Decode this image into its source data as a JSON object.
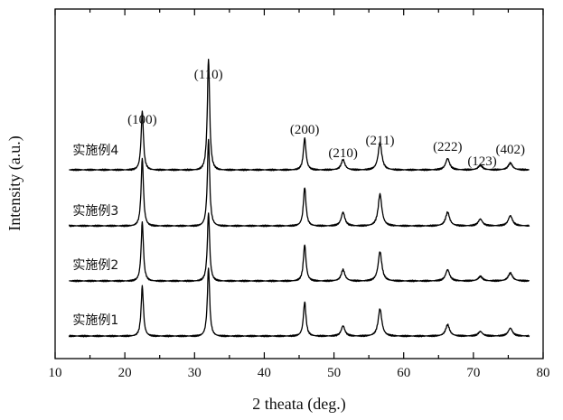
{
  "chart_data": {
    "type": "line",
    "xlabel": "2 theata (deg.)",
    "ylabel": "Intensity (a.u.)",
    "xlim": [
      10,
      80
    ],
    "x_ticks": [
      10,
      20,
      30,
      40,
      50,
      60,
      70,
      80
    ],
    "y_ticks_shown": false,
    "grid": false,
    "peak_labels": [
      {
        "label": "(100)",
        "x": 22.5
      },
      {
        "label": "(110)",
        "x": 32.0
      },
      {
        "label": "(200)",
        "x": 45.8
      },
      {
        "label": "(210)",
        "x": 51.3
      },
      {
        "label": "(211)",
        "x": 56.6
      },
      {
        "label": "(222)",
        "x": 66.3
      },
      {
        "label": "(123)",
        "x": 71.0
      },
      {
        "label": "(402)",
        "x": 75.3
      }
    ],
    "series": [
      {
        "name": "实施例4",
        "peaks": [
          {
            "x": 22.5,
            "height": 0.26
          },
          {
            "x": 32.0,
            "height": 0.49
          },
          {
            "x": 45.8,
            "height": 0.14
          },
          {
            "x": 51.3,
            "height": 0.045
          },
          {
            "x": 56.6,
            "height": 0.12
          },
          {
            "x": 66.3,
            "height": 0.05
          },
          {
            "x": 71.0,
            "height": 0.02
          },
          {
            "x": 75.3,
            "height": 0.03
          }
        ]
      },
      {
        "name": "实施例3",
        "peaks": [
          {
            "x": 22.5,
            "height": 0.3
          },
          {
            "x": 32.0,
            "height": 0.38
          },
          {
            "x": 45.8,
            "height": 0.17
          },
          {
            "x": 51.3,
            "height": 0.06
          },
          {
            "x": 56.6,
            "height": 0.14
          },
          {
            "x": 66.3,
            "height": 0.06
          },
          {
            "x": 71.0,
            "height": 0.03
          },
          {
            "x": 75.3,
            "height": 0.045
          }
        ]
      },
      {
        "name": "实施例2",
        "peaks": [
          {
            "x": 22.5,
            "height": 0.26
          },
          {
            "x": 32.0,
            "height": 0.3
          },
          {
            "x": 45.8,
            "height": 0.16
          },
          {
            "x": 51.3,
            "height": 0.05
          },
          {
            "x": 56.6,
            "height": 0.13
          },
          {
            "x": 66.3,
            "height": 0.05
          },
          {
            "x": 71.0,
            "height": 0.02
          },
          {
            "x": 75.3,
            "height": 0.035
          }
        ]
      },
      {
        "name": "实施例1",
        "peaks": [
          {
            "x": 22.5,
            "height": 0.22
          },
          {
            "x": 32.0,
            "height": 0.3
          },
          {
            "x": 45.8,
            "height": 0.15
          },
          {
            "x": 51.3,
            "height": 0.045
          },
          {
            "x": 56.6,
            "height": 0.12
          },
          {
            "x": 66.3,
            "height": 0.05
          },
          {
            "x": 71.0,
            "height": 0.02
          },
          {
            "x": 75.3,
            "height": 0.035
          }
        ]
      }
    ]
  }
}
